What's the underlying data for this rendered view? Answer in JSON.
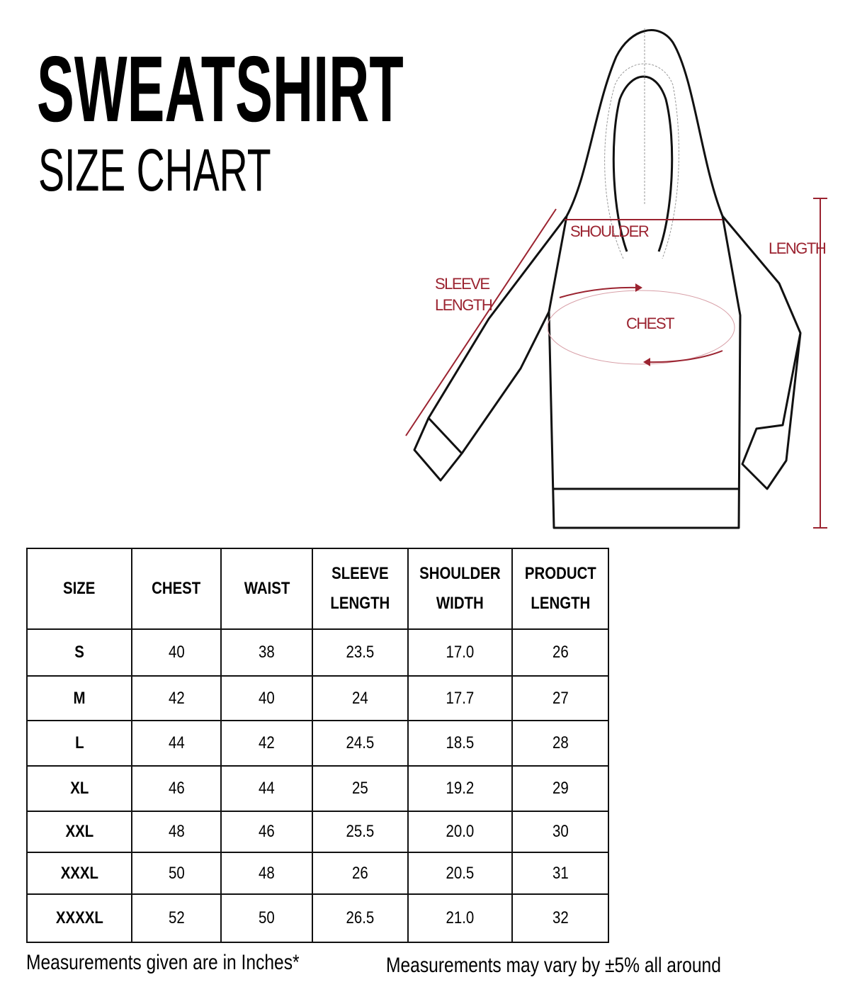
{
  "header": {
    "title": "SWEATSHIRT",
    "subtitle": "SIZE CHART"
  },
  "diagram": {
    "labels": {
      "shoulder": "SHOULDER",
      "length": "LENGTH",
      "sleeve_line1": "SLEEVE",
      "sleeve_line2": "LENGTH",
      "chest": "CHEST"
    },
    "accent_color": "#9b2330"
  },
  "table": {
    "headers": [
      [
        "SIZE"
      ],
      [
        "CHEST"
      ],
      [
        "WAIST"
      ],
      [
        "SLEEVE",
        "LENGTH"
      ],
      [
        "SHOULDER",
        "WIDTH"
      ],
      [
        "PRODUCT",
        "LENGTH"
      ]
    ],
    "rows": [
      [
        "S",
        "40",
        "38",
        "23.5",
        "17.0",
        "26"
      ],
      [
        "M",
        "42",
        "40",
        "24",
        "17.7",
        "27"
      ],
      [
        "L",
        "44",
        "42",
        "24.5",
        "18.5",
        "28"
      ],
      [
        "XL",
        "46",
        "44",
        "25",
        "19.2",
        "29"
      ],
      [
        "XXL",
        "48",
        "46",
        "25.5",
        "20.0",
        "30"
      ],
      [
        "XXXL",
        "50",
        "48",
        "26",
        "20.5",
        "31"
      ],
      [
        "XXXXL",
        "52",
        "50",
        "26.5",
        "21.0",
        "32"
      ]
    ]
  },
  "footer": {
    "left_note": "Measurements given are in Inches*",
    "right_note": "Measurements may vary by ±5% all around"
  }
}
